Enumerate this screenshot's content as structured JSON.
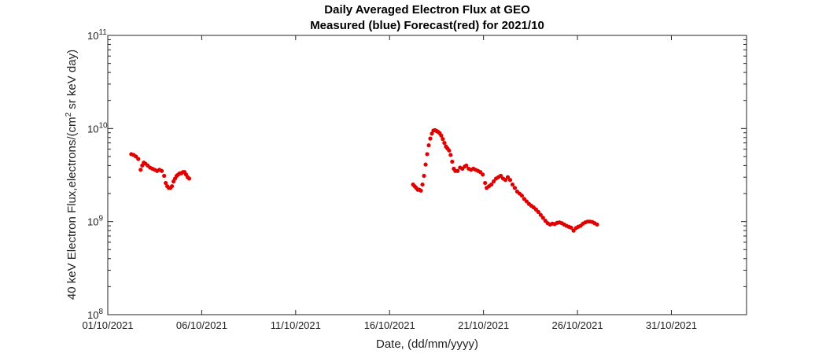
{
  "chart_data": {
    "type": "scatter",
    "title": "Daily Averaged Electron Flux at GEO",
    "subtitle": "Measured (blue) Forecast(red) for 2021/10",
    "xlabel": "Date, (dd/mm/yyyy)",
    "ylabel": "40 keV Electron Flux,electrons/(cm",
    "ylabel_superscript": "2",
    "ylabel_suffix": " sr keV day)",
    "xlim": [
      "2021-10-01",
      "2021-11-04"
    ],
    "ylim": [
      100000000.0,
      100000000000.0
    ],
    "yscale": "log",
    "xticks": [
      {
        "date": "2021-10-01",
        "label": "01/10/2021"
      },
      {
        "date": "2021-10-06",
        "label": "06/10/2021"
      },
      {
        "date": "2021-10-11",
        "label": "11/10/2021"
      },
      {
        "date": "2021-10-16",
        "label": "16/10/2021"
      },
      {
        "date": "2021-10-21",
        "label": "21/10/2021"
      },
      {
        "date": "2021-10-26",
        "label": "26/10/2021"
      },
      {
        "date": "2021-10-31",
        "label": "31/10/2021"
      }
    ],
    "yticks": [
      {
        "value": 100000000.0,
        "base": "10",
        "exp": "8"
      },
      {
        "value": 1000000000.0,
        "base": "10",
        "exp": "9"
      },
      {
        "value": 10000000000.0,
        "base": "10",
        "exp": "10"
      },
      {
        "value": 100000000000.0,
        "base": "10",
        "exp": "11"
      }
    ],
    "grid": false,
    "series": [
      {
        "color": "#e00000",
        "points": [
          [
            "2021-10-02 06:00",
            5300000000.0
          ],
          [
            "2021-10-02 09:00",
            5200000000.0
          ],
          [
            "2021-10-02 12:00",
            5000000000.0
          ],
          [
            "2021-10-02 15:00",
            4700000000.0
          ],
          [
            "2021-10-02 18:00",
            3600000000.0
          ],
          [
            "2021-10-02 20:00",
            4000000000.0
          ],
          [
            "2021-10-02 22:00",
            4300000000.0
          ],
          [
            "2021-10-03 00:00",
            4200000000.0
          ],
          [
            "2021-10-03 03:00",
            4000000000.0
          ],
          [
            "2021-10-03 06:00",
            3800000000.0
          ],
          [
            "2021-10-03 09:00",
            3700000000.0
          ],
          [
            "2021-10-03 12:00",
            3600000000.0
          ],
          [
            "2021-10-03 15:00",
            3500000000.0
          ],
          [
            "2021-10-03 18:00",
            3600000000.0
          ],
          [
            "2021-10-03 21:00",
            3500000000.0
          ],
          [
            "2021-10-04 00:00",
            3100000000.0
          ],
          [
            "2021-10-04 02:00",
            2600000000.0
          ],
          [
            "2021-10-04 04:00",
            2400000000.0
          ],
          [
            "2021-10-04 06:00",
            2300000000.0
          ],
          [
            "2021-10-04 08:00",
            2300000000.0
          ],
          [
            "2021-10-04 10:00",
            2400000000.0
          ],
          [
            "2021-10-04 12:00",
            2700000000.0
          ],
          [
            "2021-10-04 14:00",
            2900000000.0
          ],
          [
            "2021-10-04 16:00",
            3100000000.0
          ],
          [
            "2021-10-04 18:00",
            3200000000.0
          ],
          [
            "2021-10-04 20:00",
            3300000000.0
          ],
          [
            "2021-10-04 22:00",
            3300000000.0
          ],
          [
            "2021-10-05 00:00",
            3400000000.0
          ],
          [
            "2021-10-05 02:00",
            3400000000.0
          ],
          [
            "2021-10-05 04:00",
            3200000000.0
          ],
          [
            "2021-10-05 06:00",
            3000000000.0
          ],
          [
            "2021-10-05 08:00",
            2900000000.0
          ],
          [
            "2021-10-17 06:00",
            2500000000.0
          ],
          [
            "2021-10-17 08:00",
            2400000000.0
          ],
          [
            "2021-10-17 10:00",
            2300000000.0
          ],
          [
            "2021-10-17 12:00",
            2200000000.0
          ],
          [
            "2021-10-17 14:00",
            2200000000.0
          ],
          [
            "2021-10-17 16:00",
            2150000000.0
          ],
          [
            "2021-10-17 18:00",
            2500000000.0
          ],
          [
            "2021-10-17 20:00",
            3100000000.0
          ],
          [
            "2021-10-17 22:00",
            4100000000.0
          ],
          [
            "2021-10-18 00:00",
            5300000000.0
          ],
          [
            "2021-10-18 02:00",
            6600000000.0
          ],
          [
            "2021-10-18 04:00",
            7800000000.0
          ],
          [
            "2021-10-18 06:00",
            8800000000.0
          ],
          [
            "2021-10-18 08:00",
            9500000000.0
          ],
          [
            "2021-10-18 10:00",
            9600000000.0
          ],
          [
            "2021-10-18 12:00",
            9400000000.0
          ],
          [
            "2021-10-18 14:00",
            9200000000.0
          ],
          [
            "2021-10-18 16:00",
            8900000000.0
          ],
          [
            "2021-10-18 18:00",
            8400000000.0
          ],
          [
            "2021-10-18 20:00",
            7700000000.0
          ],
          [
            "2021-10-18 22:00",
            7000000000.0
          ],
          [
            "2021-10-19 00:00",
            6400000000.0
          ],
          [
            "2021-10-19 02:00",
            6100000000.0
          ],
          [
            "2021-10-19 04:00",
            5800000000.0
          ],
          [
            "2021-10-19 06:00",
            5200000000.0
          ],
          [
            "2021-10-19 08:00",
            4400000000.0
          ],
          [
            "2021-10-19 10:00",
            3700000000.0
          ],
          [
            "2021-10-19 12:00",
            3500000000.0
          ],
          [
            "2021-10-19 15:00",
            3500000000.0
          ],
          [
            "2021-10-19 18:00",
            3800000000.0
          ],
          [
            "2021-10-19 21:00",
            3700000000.0
          ],
          [
            "2021-10-20 00:00",
            3900000000.0
          ],
          [
            "2021-10-20 02:00",
            4000000000.0
          ],
          [
            "2021-10-20 05:00",
            3700000000.0
          ],
          [
            "2021-10-20 08:00",
            3600000000.0
          ],
          [
            "2021-10-20 11:00",
            3700000000.0
          ],
          [
            "2021-10-20 14:00",
            3600000000.0
          ],
          [
            "2021-10-20 17:00",
            3500000000.0
          ],
          [
            "2021-10-20 20:00",
            3400000000.0
          ],
          [
            "2021-10-20 23:00",
            3200000000.0
          ],
          [
            "2021-10-21 02:00",
            2600000000.0
          ],
          [
            "2021-10-21 04:00",
            2300000000.0
          ],
          [
            "2021-10-21 07:00",
            2400000000.0
          ],
          [
            "2021-10-21 10:00",
            2500000000.0
          ],
          [
            "2021-10-21 13:00",
            2700000000.0
          ],
          [
            "2021-10-21 16:00",
            2900000000.0
          ],
          [
            "2021-10-21 19:00",
            3000000000.0
          ],
          [
            "2021-10-21 22:00",
            3100000000.0
          ],
          [
            "2021-10-22 01:00",
            2900000000.0
          ],
          [
            "2021-10-22 04:00",
            2800000000.0
          ],
          [
            "2021-10-22 07:00",
            3000000000.0
          ],
          [
            "2021-10-22 10:00",
            2800000000.0
          ],
          [
            "2021-10-22 13:00",
            2500000000.0
          ],
          [
            "2021-10-22 16:00",
            2300000000.0
          ],
          [
            "2021-10-22 19:00",
            2100000000.0
          ],
          [
            "2021-10-22 22:00",
            2000000000.0
          ],
          [
            "2021-10-23 01:00",
            1900000000.0
          ],
          [
            "2021-10-23 04:00",
            1750000000.0
          ],
          [
            "2021-10-23 07:00",
            1650000000.0
          ],
          [
            "2021-10-23 10:00",
            1550000000.0
          ],
          [
            "2021-10-23 13:00",
            1480000000.0
          ],
          [
            "2021-10-23 16:00",
            1420000000.0
          ],
          [
            "2021-10-23 19:00",
            1350000000.0
          ],
          [
            "2021-10-23 22:00",
            1270000000.0
          ],
          [
            "2021-10-24 01:00",
            1180000000.0
          ],
          [
            "2021-10-24 04:00",
            1100000000.0
          ],
          [
            "2021-10-24 07:00",
            1020000000.0
          ],
          [
            "2021-10-24 10:00",
            960000000.0
          ],
          [
            "2021-10-24 13:00",
            930000000.0
          ],
          [
            "2021-10-24 16:00",
            950000000.0
          ],
          [
            "2021-10-24 19:00",
            940000000.0
          ],
          [
            "2021-10-24 22:00",
            970000000.0
          ],
          [
            "2021-10-25 01:00",
            980000000.0
          ],
          [
            "2021-10-25 04:00",
            960000000.0
          ],
          [
            "2021-10-25 07:00",
            930000000.0
          ],
          [
            "2021-10-25 10:00",
            900000000.0
          ],
          [
            "2021-10-25 13:00",
            880000000.0
          ],
          [
            "2021-10-25 16:00",
            860000000.0
          ],
          [
            "2021-10-25 19:00",
            800000000.0
          ],
          [
            "2021-10-25 22:00",
            850000000.0
          ],
          [
            "2021-10-26 01:00",
            880000000.0
          ],
          [
            "2021-10-26 04:00",
            900000000.0
          ],
          [
            "2021-10-26 07:00",
            950000000.0
          ],
          [
            "2021-10-26 10:00",
            980000000.0
          ],
          [
            "2021-10-26 13:00",
            1000000000.0
          ],
          [
            "2021-10-26 16:00",
            1000000000.0
          ],
          [
            "2021-10-26 19:00",
            990000000.0
          ],
          [
            "2021-10-26 22:00",
            960000000.0
          ],
          [
            "2021-10-27 01:00",
            930000000.0
          ]
        ]
      }
    ]
  }
}
